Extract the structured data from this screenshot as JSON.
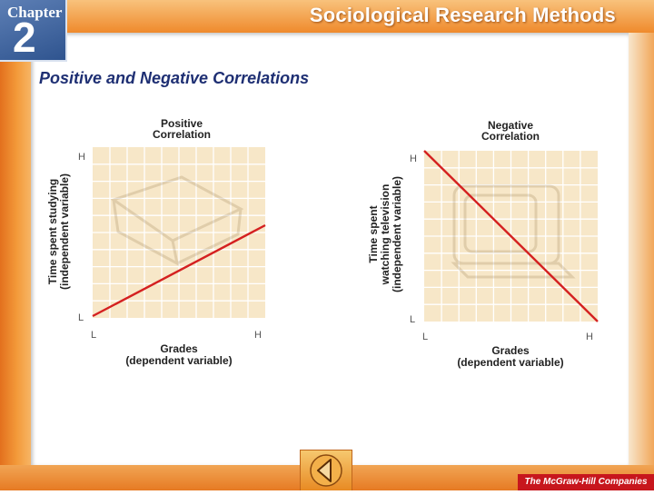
{
  "header": {
    "chapter_label": "Chapter",
    "chapter_number": "2",
    "title": "Sociological Research Methods"
  },
  "slide": {
    "title": "Positive and Negative Correlations"
  },
  "diagrams": [
    {
      "caption_line1": "Positive",
      "caption_line2": "Correlation",
      "y_label_lines": [
        "Time spent studying",
        "(independent variable)"
      ],
      "x_label_lines": [
        "Grades",
        "(dependent variable)"
      ],
      "y_high": "H",
      "y_low": "L",
      "x_low": "L",
      "x_high": "H",
      "trend": "increasing",
      "line_color": "#d42020"
    },
    {
      "caption_line1": "Negative",
      "caption_line2": "Correlation",
      "y_label_lines": [
        "Time spent",
        "watching television",
        "(independent variable)"
      ],
      "x_label_lines": [
        "Grades",
        "(dependent variable)"
      ],
      "y_high": "H",
      "y_low": "L",
      "x_low": "L",
      "x_high": "H",
      "trend": "decreasing",
      "line_color": "#d42020"
    }
  ],
  "footer": {
    "back_icon": "back-arrow-icon",
    "publisher": "The McGraw-Hill Companies"
  },
  "colors": {
    "frame_orange": "#ef8a2c",
    "chapter_blue": "#3f66a3",
    "title_navy": "#1e2f73",
    "grid_fill": "#f7e7c8"
  }
}
